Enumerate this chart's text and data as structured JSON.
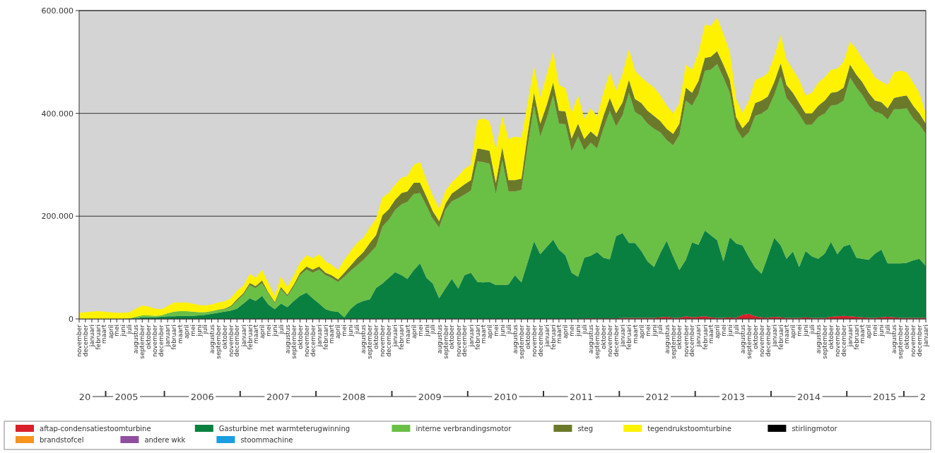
{
  "chart_data": {
    "type": "area",
    "stacked": true,
    "grid": "y",
    "legend": "bottom",
    "xlim": [
      "2004-11",
      "2016-01"
    ],
    "ylim": [
      0,
      600000
    ],
    "yticks": [
      0,
      {
        "value": 200000,
        "label": "200.000"
      },
      {
        "value": 400000,
        "label": "400.000"
      },
      {
        "value": 600000,
        "label": "600.000"
      }
    ],
    "x": [
      "2004-11",
      "2004-12",
      "2005-01",
      "2005-02",
      "2005-03",
      "2005-04",
      "2005-05",
      "2005-06",
      "2005-07",
      "2005-08",
      "2005-09",
      "2005-10",
      "2005-11",
      "2005-12",
      "2006-01",
      "2006-02",
      "2006-03",
      "2006-04",
      "2006-05",
      "2006-06",
      "2006-07",
      "2006-08",
      "2006-09",
      "2006-10",
      "2006-11",
      "2006-12",
      "2007-01",
      "2007-02",
      "2007-03",
      "2007-04",
      "2007-05",
      "2007-06",
      "2007-07",
      "2007-08",
      "2007-09",
      "2007-10",
      "2007-11",
      "2007-12",
      "2008-01",
      "2008-02",
      "2008-03",
      "2008-04",
      "2008-05",
      "2008-06",
      "2008-07",
      "2008-08",
      "2008-09",
      "2008-10",
      "2008-11",
      "2008-12",
      "2009-01",
      "2009-02",
      "2009-03",
      "2009-04",
      "2009-05",
      "2009-06",
      "2009-07",
      "2009-08",
      "2009-09",
      "2009-10",
      "2009-11",
      "2009-12",
      "2010-01",
      "2010-02",
      "2010-03",
      "2010-04",
      "2010-05",
      "2010-06",
      "2010-07",
      "2010-08",
      "2010-09",
      "2010-10",
      "2010-11",
      "2010-12",
      "2011-01",
      "2011-02",
      "2011-03",
      "2011-04",
      "2011-05",
      "2011-06",
      "2011-07",
      "2011-08",
      "2011-09",
      "2011-10",
      "2011-11",
      "2011-12",
      "2012-01",
      "2012-02",
      "2012-03",
      "2012-04",
      "2012-05",
      "2012-06",
      "2012-07",
      "2012-08",
      "2012-09",
      "2012-10",
      "2012-11",
      "2012-12",
      "2013-01",
      "2013-02",
      "2013-03",
      "2013-04",
      "2013-05",
      "2013-06",
      "2013-07",
      "2013-08",
      "2013-09",
      "2013-10",
      "2013-11",
      "2013-12",
      "2014-01",
      "2014-02",
      "2014-03",
      "2014-04",
      "2014-05",
      "2014-06",
      "2014-07",
      "2014-08",
      "2014-09",
      "2014-10",
      "2014-11",
      "2014-12",
      "2015-01",
      "2015-02",
      "2015-03",
      "2015-04",
      "2015-05",
      "2015-06",
      "2015-07",
      "2015-08",
      "2015-09",
      "2015-10",
      "2015-11",
      "2015-12",
      "2016-01"
    ],
    "xticks": [
      {
        "value": "2004-11",
        "label": "november"
      },
      {
        "value": "2004-12",
        "label": "december"
      },
      {
        "value": "2005-01",
        "label": "januari"
      },
      {
        "value": "2005-02",
        "label": "februari"
      },
      {
        "value": "2005-03",
        "label": "maart"
      },
      {
        "value": "2005-04",
        "label": "april"
      },
      {
        "value": "2005-05",
        "label": "mei"
      },
      {
        "value": "2005-06",
        "label": "juni"
      },
      {
        "value": "2005-07",
        "label": "juli"
      },
      {
        "value": "2005-08",
        "label": "augustus"
      },
      {
        "value": "2005-09",
        "label": "september"
      },
      {
        "value": "2005-10",
        "label": "oktober"
      },
      {
        "value": "2005-11",
        "label": "november"
      },
      {
        "value": "2005-12",
        "label": "december"
      },
      {
        "value": "2006-01",
        "label": "januari"
      },
      {
        "value": "2006-02",
        "label": "februari"
      },
      {
        "value": "2006-03",
        "label": "maart"
      },
      {
        "value": "2006-04",
        "label": "april"
      },
      {
        "value": "2006-05",
        "label": "mei"
      },
      {
        "value": "2006-06",
        "label": "juni"
      },
      {
        "value": "2006-07",
        "label": "juli"
      },
      {
        "value": "2006-08",
        "label": "augustus"
      },
      {
        "value": "2006-09",
        "label": "september"
      },
      {
        "value": "2006-10",
        "label": "oktober"
      },
      {
        "value": "2006-11",
        "label": "november"
      },
      {
        "value": "2006-12",
        "label": "december"
      },
      {
        "value": "2007-01",
        "label": "januari"
      },
      {
        "value": "2007-02",
        "label": "februari"
      },
      {
        "value": "2007-03",
        "label": "maart"
      },
      {
        "value": "2007-04",
        "label": "april"
      },
      {
        "value": "2007-05",
        "label": "mei"
      },
      {
        "value": "2007-06",
        "label": "juni"
      },
      {
        "value": "2007-07",
        "label": "juli"
      },
      {
        "value": "2007-08",
        "label": "augustus"
      },
      {
        "value": "2007-09",
        "label": "september"
      },
      {
        "value": "2007-10",
        "label": "oktober"
      },
      {
        "value": "2007-11",
        "label": "november"
      },
      {
        "value": "2007-12",
        "label": "december"
      },
      {
        "value": "2008-01",
        "label": "januari"
      },
      {
        "value": "2008-02",
        "label": "februari"
      },
      {
        "value": "2008-03",
        "label": "maart"
      },
      {
        "value": "2008-04",
        "label": "april"
      },
      {
        "value": "2008-05",
        "label": "mei"
      },
      {
        "value": "2008-06",
        "label": "juni"
      },
      {
        "value": "2008-07",
        "label": "juli"
      },
      {
        "value": "2008-08",
        "label": "augustus"
      },
      {
        "value": "2008-09",
        "label": "september"
      },
      {
        "value": "2008-10",
        "label": "oktober"
      },
      {
        "value": "2008-11",
        "label": "november"
      },
      {
        "value": "2008-12",
        "label": "december"
      },
      {
        "value": "2009-01",
        "label": "januari"
      },
      {
        "value": "2009-02",
        "label": "februari"
      },
      {
        "value": "2009-03",
        "label": "maart"
      },
      {
        "value": "2009-04",
        "label": "april"
      },
      {
        "value": "2009-05",
        "label": "mei"
      },
      {
        "value": "2009-06",
        "label": "juni"
      },
      {
        "value": "2009-07",
        "label": "juli"
      },
      {
        "value": "2009-08",
        "label": "augustus"
      },
      {
        "value": "2009-09",
        "label": "september"
      },
      {
        "value": "2009-10",
        "label": "oktober"
      },
      {
        "value": "2009-11",
        "label": "november"
      },
      {
        "value": "2009-12",
        "label": "december"
      },
      {
        "value": "2010-01",
        "label": "januari"
      },
      {
        "value": "2010-02",
        "label": "februari"
      },
      {
        "value": "2010-03",
        "label": "maart"
      },
      {
        "value": "2010-04",
        "label": "april"
      },
      {
        "value": "2010-05",
        "label": "mei"
      },
      {
        "value": "2010-06",
        "label": "juni"
      },
      {
        "value": "2010-07",
        "label": "juli"
      },
      {
        "value": "2010-08",
        "label": "augustus"
      },
      {
        "value": "2010-09",
        "label": "september"
      },
      {
        "value": "2010-10",
        "label": "oktober"
      },
      {
        "value": "2010-11",
        "label": "november"
      },
      {
        "value": "2010-12",
        "label": "december"
      },
      {
        "value": "2011-01",
        "label": "januari"
      },
      {
        "value": "2011-02",
        "label": "februari"
      },
      {
        "value": "2011-03",
        "label": "maart"
      },
      {
        "value": "2011-04",
        "label": "april"
      },
      {
        "value": "2011-05",
        "label": "mei"
      },
      {
        "value": "2011-06",
        "label": "juni"
      },
      {
        "value": "2011-07",
        "label": "juli"
      },
      {
        "value": "2011-08",
        "label": "augustus"
      },
      {
        "value": "2011-09",
        "label": "september"
      },
      {
        "value": "2011-10",
        "label": "oktober"
      },
      {
        "value": "2011-11",
        "label": "november"
      },
      {
        "value": "2011-12",
        "label": "december"
      },
      {
        "value": "2012-01",
        "label": "januari"
      },
      {
        "value": "2012-02",
        "label": "februari"
      },
      {
        "value": "2012-03",
        "label": "maart"
      },
      {
        "value": "2012-04",
        "label": "april"
      },
      {
        "value": "2012-05",
        "label": "mei"
      },
      {
        "value": "2012-06",
        "label": "juni"
      },
      {
        "value": "2012-07",
        "label": "juli"
      },
      {
        "value": "2012-08",
        "label": "augustus"
      },
      {
        "value": "2012-09",
        "label": "september"
      },
      {
        "value": "2012-10",
        "label": "oktober"
      },
      {
        "value": "2012-11",
        "label": "november"
      },
      {
        "value": "2012-12",
        "label": "december"
      },
      {
        "value": "2013-01",
        "label": "januari"
      },
      {
        "value": "2013-02",
        "label": "februari"
      },
      {
        "value": "2013-03",
        "label": "maart"
      },
      {
        "value": "2013-04",
        "label": "april"
      },
      {
        "value": "2013-05",
        "label": "mei"
      },
      {
        "value": "2013-06",
        "label": "juni"
      },
      {
        "value": "2013-07",
        "label": "juli"
      },
      {
        "value": "2013-08",
        "label": "augustus"
      },
      {
        "value": "2013-09",
        "label": "september"
      },
      {
        "value": "2013-10",
        "label": "oktober"
      },
      {
        "value": "2013-11",
        "label": "november"
      },
      {
        "value": "2013-12",
        "label": "december"
      },
      {
        "value": "2014-01",
        "label": "januari"
      },
      {
        "value": "2014-02",
        "label": "februari"
      },
      {
        "value": "2014-03",
        "label": "maart"
      },
      {
        "value": "2014-04",
        "label": "april"
      },
      {
        "value": "2014-05",
        "label": "mei"
      },
      {
        "value": "2014-06",
        "label": "juni"
      },
      {
        "value": "2014-07",
        "label": "juli"
      },
      {
        "value": "2014-08",
        "label": "augustus"
      },
      {
        "value": "2014-09",
        "label": "september"
      },
      {
        "value": "2014-10",
        "label": "oktober"
      },
      {
        "value": "2014-11",
        "label": "november"
      },
      {
        "value": "2014-12",
        "label": "december"
      },
      {
        "value": "2015-01",
        "label": "januari"
      },
      {
        "value": "2015-02",
        "label": "februari"
      },
      {
        "value": "2015-03",
        "label": "maart"
      },
      {
        "value": "2015-04",
        "label": "april"
      },
      {
        "value": "2015-05",
        "label": "mei"
      },
      {
        "value": "2015-06",
        "label": "juni"
      },
      {
        "value": "2015-07",
        "label": "juli"
      },
      {
        "value": "2015-08",
        "label": "augustus"
      },
      {
        "value": "2015-09",
        "label": "september"
      },
      {
        "value": "2015-10",
        "label": "oktober"
      },
      {
        "value": "2015-11",
        "label": "november"
      },
      {
        "value": "2015-12",
        "label": "december"
      },
      {
        "value": "2016-01",
        "label": "januari"
      }
    ],
    "annotations": [
      "20",
      "2005",
      "2006",
      "2007",
      "2008",
      "2009",
      "2010",
      "2011",
      "2012",
      "2013",
      "2014",
      "2015",
      "2"
    ],
    "series": [
      {
        "name": "aftap-condensatiestoomturbine",
        "color": "#d7202a",
        "values": [
          0,
          0,
          0,
          0,
          0,
          0,
          0,
          0,
          0,
          0,
          0,
          0,
          0,
          0,
          0,
          0,
          0,
          0,
          0,
          0,
          0,
          0,
          0,
          0,
          0,
          0,
          0,
          0,
          0,
          0,
          0,
          0,
          0,
          0,
          0,
          0,
          0,
          0,
          0,
          0,
          0,
          0,
          0,
          0,
          0,
          0,
          0,
          0,
          0,
          0,
          0,
          0,
          0,
          0,
          0,
          0,
          0,
          0,
          0,
          0,
          0,
          0,
          0,
          0,
          0,
          0,
          0,
          0,
          0,
          0,
          0,
          0,
          0,
          0,
          0,
          0,
          0,
          0,
          0,
          0,
          1000,
          1000,
          1000,
          1000,
          1000,
          1000,
          2000,
          2000,
          2000,
          2000,
          2000,
          2000,
          3000,
          4000,
          2000,
          2000,
          5000,
          3000,
          4000,
          5000,
          3000,
          2000,
          2000,
          3000,
          2000,
          8000,
          10000,
          5000,
          3000,
          2000,
          4000,
          3000,
          2000,
          2000,
          2000,
          3000,
          2000,
          2000,
          2000,
          4000,
          5000,
          6000,
          5000,
          4000,
          3000,
          2000,
          2000,
          3000,
          4000,
          3000,
          2000,
          2000,
          2000,
          2000,
          2000
        ]
      },
      {
        "name": "Gasturbine met warmteterugwinning",
        "color": "#0a8040",
        "values": [
          0,
          0,
          0,
          0,
          0,
          0,
          0,
          0,
          0,
          1000,
          3000,
          3000,
          3000,
          4000,
          5000,
          5000,
          6000,
          6000,
          6000,
          7000,
          8000,
          10000,
          12000,
          14000,
          16000,
          20000,
          30000,
          40000,
          35000,
          45000,
          28000,
          19000,
          30000,
          23000,
          35000,
          45000,
          51000,
          40000,
          30000,
          19000,
          15000,
          14000,
          3000,
          20000,
          30000,
          35000,
          38000,
          60000,
          69000,
          80000,
          91000,
          85000,
          78000,
          95000,
          108000,
          80000,
          69000,
          40000,
          60000,
          78000,
          59000,
          85000,
          90000,
          72000,
          71000,
          72000,
          66000,
          66000,
          67000,
          85000,
          71000,
          110000,
          151000,
          126000,
          140000,
          154000,
          135000,
          124000,
          90000,
          82000,
          118000,
          122000,
          129000,
          118000,
          115000,
          160000,
          165000,
          146000,
          146000,
          130000,
          110000,
          99000,
          125000,
          148000,
          120000,
          93000,
          110000,
          146000,
          140000,
          167000,
          160000,
          151000,
          110000,
          156000,
          145000,
          135000,
          110000,
          95000,
          85000,
          120000,
          154000,
          140000,
          115000,
          129000,
          99000,
          129000,
          120000,
          115000,
          125000,
          146000,
          121000,
          135000,
          140000,
          115000,
          114000,
          113000,
          125000,
          132000,
          104000,
          105000,
          106000,
          107000,
          112000,
          115000,
          101000
        ]
      },
      {
        "name": "interne verbrandingsmotor",
        "color": "#6abf45",
        "values": [
          0,
          0,
          0,
          0,
          0,
          0,
          0,
          0,
          1000,
          3000,
          4000,
          4000,
          3000,
          3000,
          6000,
          9000,
          9000,
          9000,
          8000,
          6000,
          5000,
          5000,
          5000,
          5000,
          7000,
          15000,
          17000,
          26000,
          25000,
          25000,
          21000,
          12000,
          28000,
          21000,
          28000,
          40000,
          45000,
          50000,
          66000,
          66000,
          65000,
          58000,
          79000,
          74000,
          74000,
          80000,
          90000,
          81000,
          111000,
          113000,
          121000,
          138000,
          150000,
          148000,
          137000,
          140000,
          126000,
          138000,
          153000,
          151000,
          176000,
          157000,
          160000,
          235000,
          234000,
          230000,
          177000,
          243000,
          181000,
          163000,
          180000,
          225000,
          264000,
          229000,
          251000,
          281000,
          245000,
          255000,
          236000,
          273000,
          209000,
          220000,
          202000,
          251000,
          289000,
          214000,
          229000,
          292000,
          255000,
          263000,
          268000,
          269000,
          235000,
          196000,
          216000,
          263000,
          310000,
          266000,
          294000,
          311000,
          322000,
          343000,
          358000,
          281000,
          224000,
          208000,
          243000,
          295000,
          312000,
          286000,
          278000,
          329000,
          313000,
          284000,
          297000,
          246000,
          256000,
          276000,
          273000,
          265000,
          291000,
          284000,
          325000,
          331000,
          319000,
          300000,
          276000,
          265000,
          280000,
          300000,
          300000,
          301000,
          276000,
          261000,
          257000
        ]
      },
      {
        "name": "steg",
        "color": "#6b7a2a",
        "values": [
          0,
          0,
          0,
          0,
          0,
          0,
          0,
          0,
          0,
          0,
          0,
          0,
          0,
          0,
          0,
          0,
          0,
          0,
          0,
          0,
          0,
          0,
          1000,
          1000,
          2000,
          3000,
          3000,
          4000,
          4000,
          5000,
          3000,
          2000,
          4000,
          3000,
          4000,
          5000,
          6000,
          6000,
          6000,
          5000,
          5000,
          5000,
          8000,
          10000,
          14000,
          15000,
          20000,
          22000,
          22000,
          20000,
          20000,
          22000,
          20000,
          22000,
          20000,
          18000,
          15000,
          12000,
          12000,
          15000,
          18000,
          20000,
          20000,
          25000,
          25000,
          25000,
          22000,
          25000,
          22000,
          22000,
          22000,
          25000,
          25000,
          25000,
          25000,
          25000,
          25000,
          25000,
          25000,
          25000,
          22000,
          22000,
          22000,
          25000,
          25000,
          25000,
          25000,
          25000,
          25000,
          25000,
          25000,
          25000,
          22000,
          22000,
          22000,
          22000,
          25000,
          25000,
          25000,
          25000,
          25000,
          25000,
          25000,
          25000,
          22000,
          20000,
          22000,
          25000,
          25000,
          25000,
          25000,
          25000,
          25000,
          25000,
          22000,
          22000,
          22000,
          22000,
          25000,
          25000,
          25000,
          25000,
          25000,
          25000,
          25000,
          25000,
          22000,
          22000,
          22000,
          22000,
          25000,
          25000,
          25000,
          22000,
          20000
        ]
      },
      {
        "name": "tegendrukstoomturbine",
        "color": "#fff200",
        "values": [
          12000,
          13000,
          14000,
          15000,
          14000,
          13000,
          12000,
          12000,
          12000,
          16000,
          19000,
          17000,
          14000,
          12000,
          14000,
          18000,
          17000,
          17000,
          16000,
          14000,
          13000,
          13000,
          14000,
          14000,
          15000,
          17000,
          15000,
          18000,
          16000,
          20000,
          18000,
          12000,
          20000,
          15000,
          18000,
          20000,
          22000,
          22000,
          24000,
          22000,
          20000,
          18000,
          25000,
          28000,
          30000,
          28000,
          30000,
          32000,
          35000,
          32000,
          30000,
          30000,
          30000,
          35000,
          40000,
          32000,
          30000,
          25000,
          25000,
          22000,
          25000,
          30000,
          30000,
          55000,
          60000,
          58000,
          65000,
          60000,
          80000,
          85000,
          80000,
          60000,
          50000,
          50000,
          60000,
          60000,
          50000,
          45000,
          50000,
          55000,
          40000,
          45000,
          40000,
          45000,
          50000,
          45000,
          55000,
          60000,
          55000,
          50000,
          55000,
          55000,
          50000,
          45000,
          40000,
          40000,
          45000,
          45000,
          55000,
          65000,
          60000,
          65000,
          60000,
          55000,
          35000,
          30000,
          40000,
          45000,
          45000,
          45000,
          50000,
          55000,
          50000,
          45000,
          45000,
          35000,
          40000,
          45000,
          45000,
          45000,
          45000,
          50000,
          45000,
          50000,
          45000,
          50000,
          45000,
          40000,
          45000,
          50000,
          50000,
          45000,
          45000,
          40000,
          20000
        ]
      },
      {
        "name": "stirlingmotor",
        "color": "#000000",
        "values": [
          null,
          null,
          null,
          null,
          null,
          null,
          null,
          null,
          null,
          null,
          null,
          null,
          null,
          null,
          null,
          null,
          null,
          null,
          null,
          null,
          null,
          null,
          null,
          null,
          null,
          null,
          null,
          null,
          null,
          null,
          null,
          null,
          null,
          null,
          null,
          null,
          null,
          null,
          null,
          null,
          null,
          null,
          null,
          null,
          null,
          null,
          null,
          null,
          null,
          null,
          null,
          null,
          null,
          null,
          null,
          null,
          null,
          null,
          null,
          null,
          null,
          null,
          null,
          null,
          null,
          null,
          null,
          null,
          null,
          null,
          null,
          null,
          null,
          null,
          null,
          null,
          null,
          null,
          null,
          null,
          null,
          null,
          null,
          null,
          null,
          null,
          null,
          null,
          null,
          null,
          null,
          null,
          null,
          null,
          null,
          null,
          null,
          null,
          null,
          null,
          null,
          null,
          null,
          null,
          null,
          null,
          null,
          null,
          null,
          null,
          null,
          null,
          null,
          null,
          null,
          null,
          null,
          null,
          null,
          null,
          null,
          null,
          null,
          null,
          null,
          null,
          null,
          null,
          null,
          null,
          null,
          null,
          null,
          null,
          null
        ]
      },
      {
        "name": "brandstofcel",
        "color": "#f7941d",
        "values": [
          null,
          null,
          null,
          null,
          null,
          null,
          null,
          null,
          null,
          null,
          null,
          null,
          null,
          null,
          null,
          null,
          null,
          null,
          null,
          null,
          null,
          null,
          null,
          null,
          null,
          null,
          null,
          null,
          null,
          null,
          null,
          null,
          null,
          null,
          null,
          null,
          null,
          null,
          null,
          null,
          null,
          null,
          null,
          null,
          null,
          null,
          null,
          null,
          null,
          null,
          null,
          null,
          null,
          null,
          null,
          null,
          null,
          null,
          null,
          null,
          null,
          null,
          null,
          null,
          null,
          null,
          null,
          null,
          null,
          null,
          null,
          null,
          null,
          null,
          null,
          null,
          null,
          null,
          null,
          null,
          null,
          null,
          null,
          null,
          null,
          null,
          null,
          null,
          null,
          null,
          null,
          null,
          null,
          null,
          null,
          null,
          null,
          null,
          null,
          null,
          null,
          null,
          null,
          null,
          null,
          null,
          null,
          null,
          null,
          null,
          null,
          null,
          null,
          null,
          null,
          null,
          null,
          null,
          null,
          null,
          null,
          null,
          null,
          null,
          null,
          null,
          null,
          null,
          null,
          null,
          null,
          null,
          null,
          null,
          null
        ]
      },
      {
        "name": "andere wkk",
        "color": "#8e4f9e",
        "values": [
          null,
          null,
          null,
          null,
          null,
          null,
          null,
          null,
          null,
          null,
          null,
          null,
          null,
          null,
          null,
          null,
          null,
          null,
          null,
          null,
          null,
          null,
          null,
          null,
          null,
          null,
          null,
          null,
          null,
          null,
          null,
          null,
          null,
          null,
          null,
          null,
          null,
          null,
          null,
          null,
          null,
          null,
          null,
          null,
          null,
          null,
          null,
          null,
          null,
          null,
          null,
          null,
          null,
          null,
          null,
          null,
          null,
          null,
          null,
          null,
          null,
          null,
          null,
          null,
          null,
          null,
          null,
          null,
          null,
          null,
          null,
          null,
          null,
          null,
          null,
          null,
          null,
          null,
          null,
          null,
          null,
          null,
          null,
          null,
          null,
          null,
          null,
          null,
          null,
          null,
          null,
          null,
          null,
          null,
          null,
          null,
          null,
          null,
          null,
          null,
          null,
          null,
          null,
          null,
          null,
          null,
          null,
          null,
          null,
          null,
          null,
          null,
          null,
          null,
          null,
          null,
          null,
          null,
          null,
          null,
          null,
          null,
          null,
          null,
          null,
          null,
          null,
          null,
          null,
          null,
          null,
          null,
          null,
          null,
          null
        ]
      },
      {
        "name": "stoommachine",
        "color": "#1b9de2",
        "values": [
          null,
          null,
          null,
          null,
          null,
          null,
          null,
          null,
          null,
          null,
          null,
          null,
          null,
          null,
          null,
          null,
          null,
          null,
          null,
          null,
          null,
          null,
          null,
          null,
          null,
          null,
          null,
          null,
          null,
          null,
          null,
          null,
          null,
          null,
          null,
          null,
          null,
          null,
          null,
          null,
          null,
          null,
          null,
          null,
          null,
          null,
          null,
          null,
          null,
          null,
          null,
          null,
          null,
          null,
          null,
          null,
          null,
          null,
          null,
          null,
          null,
          null,
          null,
          null,
          null,
          null,
          null,
          null,
          null,
          null,
          null,
          null,
          null,
          null,
          null,
          null,
          null,
          null,
          null,
          null,
          null,
          null,
          null,
          null,
          null,
          null,
          null,
          null,
          null,
          null,
          null,
          null,
          null,
          null,
          null,
          null,
          null,
          null,
          null,
          null,
          null,
          null,
          null,
          null,
          null,
          null,
          null,
          null,
          null,
          null,
          null,
          null,
          null,
          null,
          null,
          null,
          null,
          null,
          null,
          null,
          null,
          null,
          null,
          null,
          null,
          null,
          null,
          null,
          null,
          null,
          null,
          null,
          null,
          null,
          null
        ]
      }
    ]
  }
}
